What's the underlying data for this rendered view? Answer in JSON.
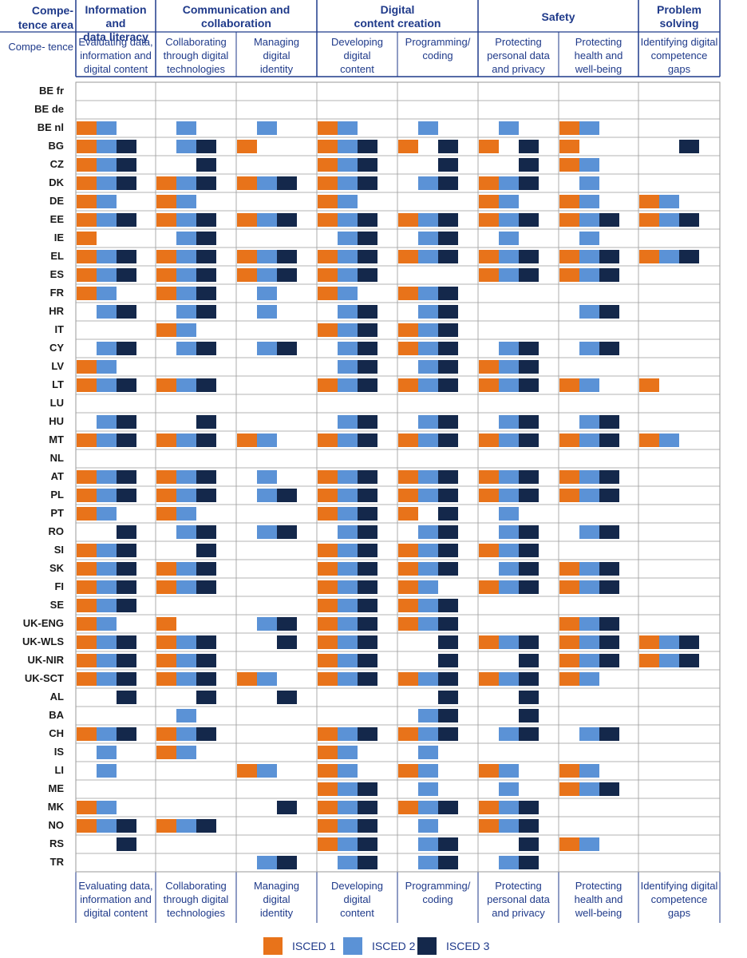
{
  "chart_data": {
    "type": "table",
    "header": {
      "area_label": "Compe-\ntence area",
      "competence_label": "Compe-\ntence"
    },
    "areas": [
      {
        "title": "Information and\ndata literacy",
        "competences": [
          "Evaluating data,\ninformation and\ndigital content"
        ]
      },
      {
        "title": "Communication and\ncollaboration",
        "competences": [
          "Collaborating\nthrough digital\ntechnologies",
          "Managing\ndigital\nidentity"
        ]
      },
      {
        "title": "Digital\ncontent creation",
        "competences": [
          "Developing\ndigital\ncontent",
          "Programming/\ncoding"
        ]
      },
      {
        "title": "Safety",
        "competences": [
          "Protecting\npersonal data\nand privacy",
          "Protecting\nhealth and\nwell-being"
        ]
      },
      {
        "title": "Problem\nsolving",
        "competences": [
          "Identifying digital\ncompetence\ngaps"
        ]
      }
    ],
    "legend": [
      {
        "key": "1",
        "label": "ISCED 1",
        "color": "#e8731a"
      },
      {
        "key": "2",
        "label": "ISCED 2",
        "color": "#5b92d6"
      },
      {
        "key": "3",
        "label": "ISCED 3",
        "color": "#14284b"
      }
    ],
    "rows": [
      {
        "country": "BE fr",
        "cells": [
          "",
          "",
          "",
          "",
          "",
          "",
          "",
          ""
        ]
      },
      {
        "country": "BE de",
        "cells": [
          "",
          "",
          "",
          "",
          "",
          "",
          "",
          ""
        ]
      },
      {
        "country": "BE nl",
        "cells": [
          "12",
          "2",
          "2",
          "12",
          "2",
          "2",
          "12",
          ""
        ]
      },
      {
        "country": "BG",
        "cells": [
          "123",
          "23",
          "1",
          "123",
          "13",
          "13",
          "1",
          "3"
        ]
      },
      {
        "country": "CZ",
        "cells": [
          "123",
          "3",
          "",
          "123",
          "3",
          "3",
          "12",
          ""
        ]
      },
      {
        "country": "DK",
        "cells": [
          "123",
          "123",
          "123",
          "123",
          "23",
          "123",
          "2",
          ""
        ]
      },
      {
        "country": "DE",
        "cells": [
          "12",
          "12",
          "",
          "12",
          "",
          "12",
          "12",
          "12"
        ]
      },
      {
        "country": "EE",
        "cells": [
          "123",
          "123",
          "123",
          "123",
          "123",
          "123",
          "123",
          "123"
        ]
      },
      {
        "country": "IE",
        "cells": [
          "1",
          "23",
          "",
          "23",
          "23",
          "2",
          "2",
          ""
        ]
      },
      {
        "country": "EL",
        "cells": [
          "123",
          "123",
          "123",
          "123",
          "123",
          "123",
          "123",
          "123"
        ]
      },
      {
        "country": "ES",
        "cells": [
          "123",
          "123",
          "123",
          "123",
          "",
          "123",
          "123",
          ""
        ]
      },
      {
        "country": "FR",
        "cells": [
          "12",
          "123",
          "2",
          "12",
          "123",
          "",
          "",
          ""
        ]
      },
      {
        "country": "HR",
        "cells": [
          "23",
          "23",
          "2",
          "23",
          "23",
          "",
          "23",
          ""
        ]
      },
      {
        "country": "IT",
        "cells": [
          "",
          "12",
          "",
          "123",
          "123",
          "",
          "",
          ""
        ]
      },
      {
        "country": "CY",
        "cells": [
          "23",
          "23",
          "23",
          "23",
          "123",
          "23",
          "23",
          ""
        ]
      },
      {
        "country": "LV",
        "cells": [
          "12",
          "",
          "",
          "23",
          "23",
          "123",
          "",
          ""
        ]
      },
      {
        "country": "LT",
        "cells": [
          "123",
          "123",
          "",
          "123",
          "123",
          "123",
          "12",
          "1"
        ]
      },
      {
        "country": "LU",
        "cells": [
          "",
          "",
          "",
          "",
          "",
          "",
          "",
          ""
        ]
      },
      {
        "country": "HU",
        "cells": [
          "23",
          "3",
          "",
          "23",
          "23",
          "23",
          "23",
          ""
        ]
      },
      {
        "country": "MT",
        "cells": [
          "123",
          "123",
          "12",
          "123",
          "123",
          "123",
          "123",
          "12"
        ]
      },
      {
        "country": "NL",
        "cells": [
          "",
          "",
          "",
          "",
          "",
          "",
          "",
          ""
        ]
      },
      {
        "country": "AT",
        "cells": [
          "123",
          "123",
          "2",
          "123",
          "123",
          "123",
          "123",
          ""
        ]
      },
      {
        "country": "PL",
        "cells": [
          "123",
          "123",
          "23",
          "123",
          "123",
          "123",
          "123",
          ""
        ]
      },
      {
        "country": "PT",
        "cells": [
          "12",
          "12",
          "",
          "123",
          "13",
          "2",
          "",
          ""
        ]
      },
      {
        "country": "RO",
        "cells": [
          "3",
          "23",
          "23",
          "23",
          "23",
          "23",
          "23",
          ""
        ]
      },
      {
        "country": "SI",
        "cells": [
          "123",
          "3",
          "",
          "123",
          "123",
          "123",
          "",
          ""
        ]
      },
      {
        "country": "SK",
        "cells": [
          "123",
          "123",
          "",
          "123",
          "123",
          "23",
          "123",
          ""
        ]
      },
      {
        "country": "FI",
        "cells": [
          "123",
          "123",
          "",
          "123",
          "12",
          "123",
          "123",
          ""
        ]
      },
      {
        "country": "SE",
        "cells": [
          "123",
          "",
          "",
          "123",
          "123",
          "",
          "",
          ""
        ]
      },
      {
        "country": "UK-ENG",
        "cells": [
          "12",
          "1",
          "23",
          "123",
          "123",
          "",
          "123",
          ""
        ]
      },
      {
        "country": "UK-WLS",
        "cells": [
          "123",
          "123",
          "3",
          "123",
          "3",
          "123",
          "123",
          "123"
        ]
      },
      {
        "country": "UK-NIR",
        "cells": [
          "123",
          "123",
          "",
          "123",
          "3",
          "3",
          "123",
          "123"
        ]
      },
      {
        "country": "UK-SCT",
        "cells": [
          "123",
          "123",
          "12",
          "123",
          "123",
          "123",
          "12",
          ""
        ]
      },
      {
        "country": "AL",
        "cells": [
          "3",
          "3",
          "3",
          "",
          "3",
          "3",
          "",
          ""
        ]
      },
      {
        "country": "BA",
        "cells": [
          "",
          "2",
          "",
          "",
          "23",
          "3",
          "",
          ""
        ]
      },
      {
        "country": "CH",
        "cells": [
          "123",
          "123",
          "",
          "123",
          "123",
          "23",
          "23",
          ""
        ]
      },
      {
        "country": "IS",
        "cells": [
          "2",
          "12",
          "",
          "12",
          "2",
          "",
          "",
          ""
        ]
      },
      {
        "country": "LI",
        "cells": [
          "2",
          "",
          "12",
          "12",
          "12",
          "12",
          "12",
          ""
        ]
      },
      {
        "country": "ME",
        "cells": [
          "",
          "",
          "",
          "123",
          "2",
          "2",
          "123",
          ""
        ]
      },
      {
        "country": "MK",
        "cells": [
          "12",
          "",
          "3",
          "123",
          "123",
          "123",
          "",
          ""
        ]
      },
      {
        "country": "NO",
        "cells": [
          "123",
          "123",
          "",
          "123",
          "2",
          "123",
          "",
          ""
        ]
      },
      {
        "country": "RS",
        "cells": [
          "3",
          "",
          "",
          "123",
          "23",
          "3",
          "12",
          ""
        ]
      },
      {
        "country": "TR",
        "cells": [
          "",
          "",
          "23",
          "23",
          "23",
          "23",
          "",
          ""
        ]
      }
    ]
  }
}
